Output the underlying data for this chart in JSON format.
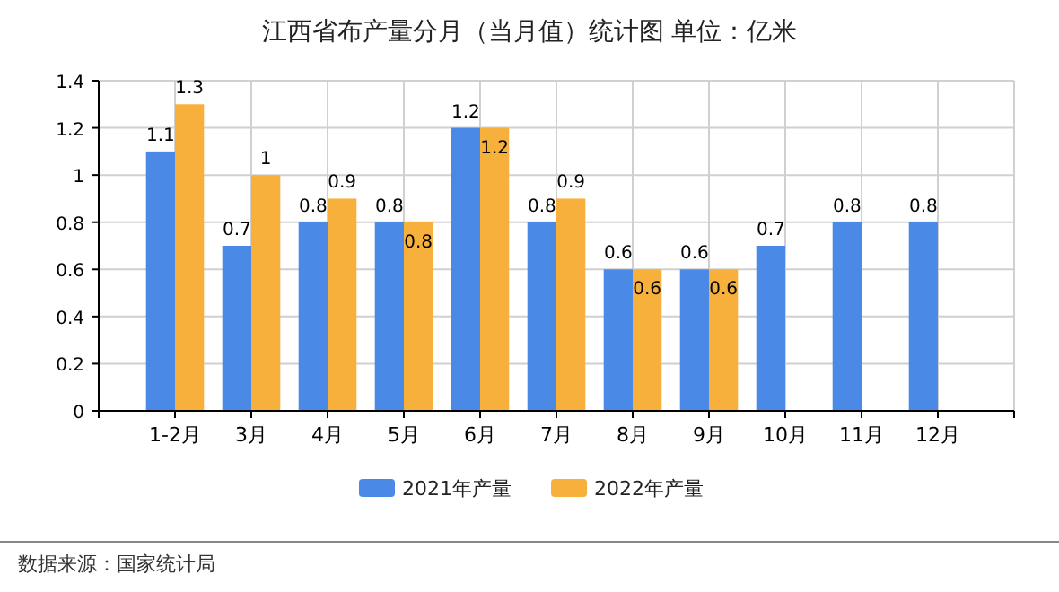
{
  "chart_data": {
    "type": "bar",
    "title": "江西省布产量分月（当月值）统计图 单位：亿米",
    "categories": [
      "1-2月",
      "3月",
      "4月",
      "5月",
      "6月",
      "7月",
      "8月",
      "9月",
      "10月",
      "11月",
      "12月"
    ],
    "series": [
      {
        "name": "2021年产量",
        "color": "#4a8ae6",
        "values": [
          1.1,
          0.7,
          0.8,
          0.8,
          1.2,
          0.8,
          0.6,
          0.6,
          0.7,
          0.8,
          0.8
        ]
      },
      {
        "name": "2022年产量",
        "color": "#f8b03d",
        "values": [
          1.3,
          1,
          0.9,
          0.8,
          1.2,
          0.9,
          0.6,
          0.6,
          null,
          null,
          null
        ]
      }
    ],
    "ylim": [
      0,
      1.4
    ],
    "yticks": [
      0,
      0.2,
      0.4,
      0.6,
      0.8,
      1,
      1.2,
      1.4
    ],
    "grid": true,
    "legend": "bottom",
    "data_labels": true,
    "annotations": [
      "数据来源：国家统计局"
    ]
  }
}
